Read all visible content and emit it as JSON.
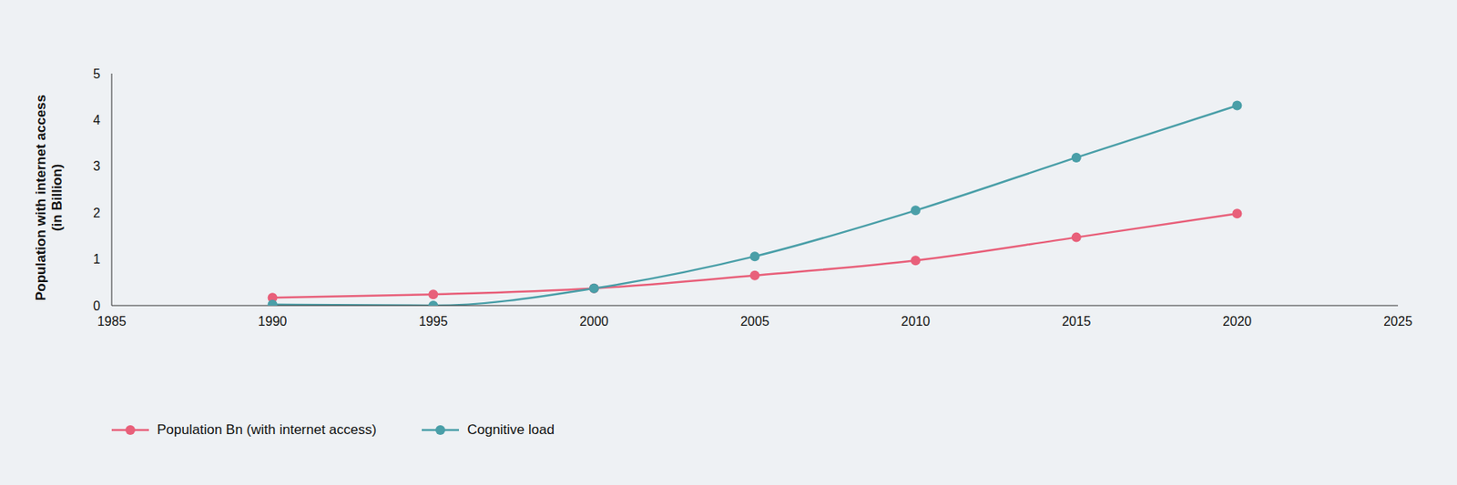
{
  "chart_data": {
    "type": "line",
    "y_label": "Population with internet access (in Billion)",
    "x": [
      1990,
      1995,
      2000,
      2005,
      2010,
      2015,
      2020
    ],
    "series": [
      {
        "name": "Population Bn (with internet access)",
        "color": "#e8607a",
        "values": [
          0.17,
          0.24,
          0.37,
          0.65,
          0.97,
          1.47,
          1.98
        ],
        "marker": "circle"
      },
      {
        "name": "Cognitive load",
        "color": "#4a9fa8",
        "values": [
          0.02,
          0.0,
          0.37,
          1.06,
          2.05,
          3.19,
          4.31
        ],
        "marker": "circle"
      }
    ],
    "xlim": [
      1985,
      2025
    ],
    "xticks": [
      1985,
      1990,
      1995,
      2000,
      2005,
      2010,
      2015,
      2020,
      2025
    ],
    "ylim": [
      0,
      5
    ],
    "yticks": [
      0,
      1,
      2,
      3,
      4,
      5
    ],
    "grid": false,
    "legend": "bottom-left"
  }
}
